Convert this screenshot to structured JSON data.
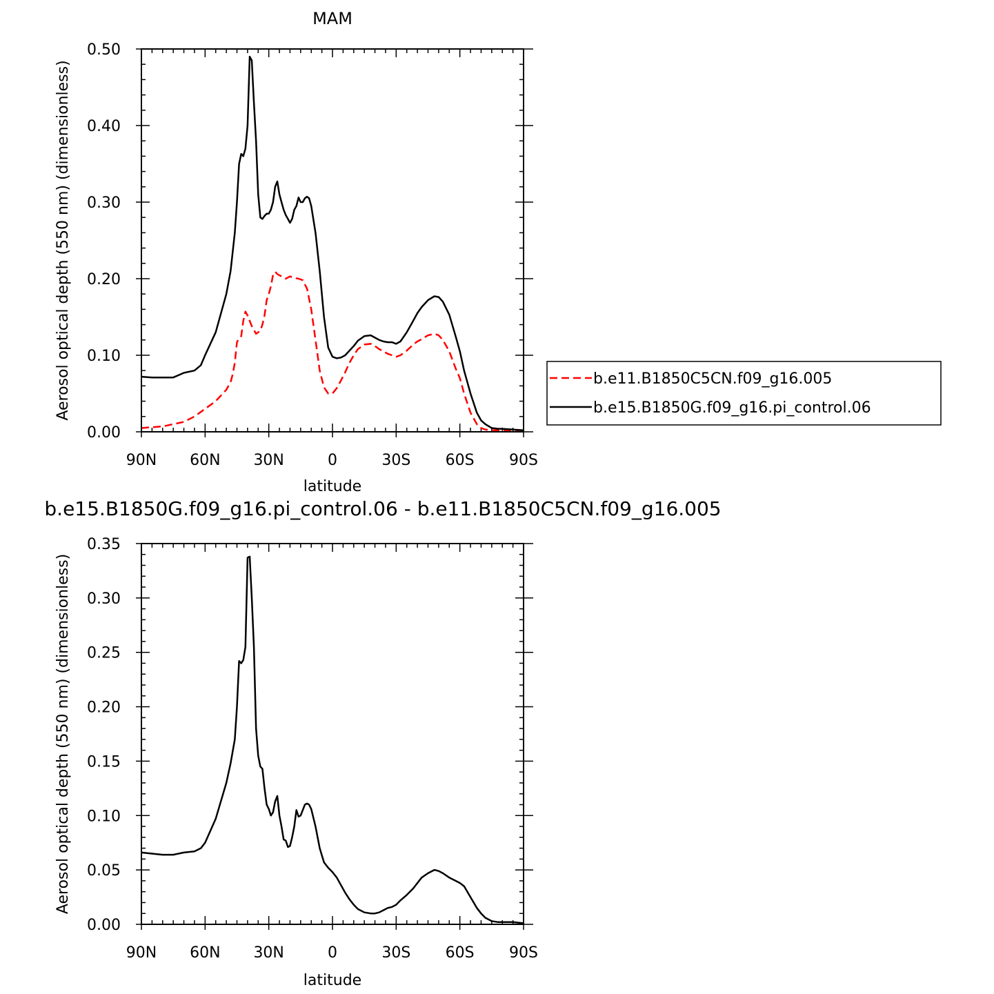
{
  "chart_data": [
    {
      "type": "line",
      "title": "MAM",
      "xlabel": "latitude",
      "ylabel": "Aerosol optical depth (550 nm) (dimensionless)",
      "xlim": [
        90,
        -90
      ],
      "ylim": [
        0,
        0.5
      ],
      "x_ticks": [
        90,
        60,
        30,
        0,
        -30,
        -60,
        -90
      ],
      "x_tick_labels": [
        "90N",
        "60N",
        "30N",
        "0",
        "30S",
        "60S",
        "90S"
      ],
      "y_ticks": [
        0,
        0.1,
        0.2,
        0.3,
        0.4,
        0.5
      ],
      "y_tick_labels": [
        "0.00",
        "0.10",
        "0.20",
        "0.30",
        "0.40",
        "0.50"
      ],
      "legend_position": "right",
      "series": [
        {
          "name": "b.e11.B1850C5CN.f09_g16.005",
          "color": "#ff0000",
          "dash": "dashed",
          "x": [
            90,
            80,
            75,
            70,
            65,
            60,
            55,
            50,
            48,
            47,
            46,
            45,
            44,
            43,
            42,
            41,
            40,
            38,
            36,
            34,
            33,
            32,
            31,
            30,
            29,
            28,
            27,
            26,
            24,
            22,
            20,
            18,
            16,
            14,
            12,
            10,
            8,
            6,
            4,
            2,
            0,
            -2,
            -4,
            -6,
            -8,
            -10,
            -12,
            -15,
            -18,
            -20,
            -22,
            -24,
            -26,
            -28,
            -30,
            -32,
            -35,
            -38,
            -40,
            -42,
            -45,
            -48,
            -50,
            -52,
            -55,
            -58,
            -60,
            -62,
            -65,
            -68,
            -70,
            -72,
            -75,
            -78,
            -80,
            -85,
            -90
          ],
          "y": [
            0.005,
            0.007,
            0.01,
            0.013,
            0.02,
            0.03,
            0.04,
            0.055,
            0.065,
            0.075,
            0.09,
            0.117,
            0.122,
            0.125,
            0.145,
            0.157,
            0.152,
            0.138,
            0.128,
            0.132,
            0.14,
            0.152,
            0.172,
            0.18,
            0.19,
            0.205,
            0.209,
            0.206,
            0.203,
            0.2,
            0.203,
            0.201,
            0.2,
            0.198,
            0.187,
            0.16,
            0.12,
            0.08,
            0.058,
            0.05,
            0.05,
            0.057,
            0.067,
            0.078,
            0.09,
            0.1,
            0.108,
            0.114,
            0.115,
            0.112,
            0.108,
            0.105,
            0.102,
            0.1,
            0.098,
            0.1,
            0.106,
            0.114,
            0.118,
            0.121,
            0.126,
            0.128,
            0.126,
            0.12,
            0.105,
            0.083,
            0.07,
            0.05,
            0.025,
            0.01,
            0.005,
            0.003,
            0.002,
            0.002,
            0.002,
            0.001,
            0.001
          ]
        },
        {
          "name": "b.e15.B1850G.f09_g16.pi_control.06",
          "color": "#000000",
          "dash": "solid",
          "x": [
            90,
            85,
            80,
            75,
            70,
            65,
            62,
            60,
            55,
            50,
            48,
            46,
            45,
            44,
            43,
            42,
            41,
            40,
            39,
            38,
            37,
            36,
            35,
            34,
            33,
            32,
            31,
            30,
            29,
            28,
            27,
            26,
            25,
            24,
            23,
            22,
            21,
            20,
            19,
            18,
            17,
            16,
            15,
            14,
            13,
            12,
            11,
            10,
            8,
            6,
            4,
            2,
            0,
            -2,
            -4,
            -6,
            -8,
            -10,
            -12,
            -15,
            -18,
            -20,
            -22,
            -24,
            -26,
            -28,
            -30,
            -32,
            -35,
            -38,
            -40,
            -42,
            -45,
            -48,
            -50,
            -52,
            -55,
            -58,
            -60,
            -62,
            -65,
            -68,
            -70,
            -72,
            -75,
            -78,
            -80,
            -85,
            -90
          ],
          "y": [
            0.072,
            0.071,
            0.071,
            0.071,
            0.077,
            0.08,
            0.087,
            0.1,
            0.13,
            0.18,
            0.21,
            0.26,
            0.3,
            0.35,
            0.363,
            0.36,
            0.37,
            0.4,
            0.49,
            0.485,
            0.43,
            0.38,
            0.31,
            0.28,
            0.278,
            0.282,
            0.285,
            0.285,
            0.29,
            0.3,
            0.32,
            0.327,
            0.31,
            0.3,
            0.29,
            0.283,
            0.278,
            0.273,
            0.278,
            0.29,
            0.295,
            0.306,
            0.3,
            0.3,
            0.305,
            0.307,
            0.305,
            0.295,
            0.26,
            0.21,
            0.15,
            0.11,
            0.098,
            0.096,
            0.097,
            0.1,
            0.106,
            0.112,
            0.119,
            0.125,
            0.126,
            0.123,
            0.12,
            0.118,
            0.117,
            0.117,
            0.115,
            0.118,
            0.13,
            0.145,
            0.155,
            0.163,
            0.172,
            0.177,
            0.176,
            0.17,
            0.153,
            0.125,
            0.105,
            0.08,
            0.05,
            0.025,
            0.015,
            0.01,
            0.005,
            0.004,
            0.004,
            0.003,
            0.002
          ]
        }
      ]
    },
    {
      "type": "line",
      "title": "b.e15.B1850G.f09_g16.pi_control.06 - b.e11.B1850C5CN.f09_g16.005",
      "xlabel": "latitude",
      "ylabel": "Aerosol optical depth (550 nm) (dimensionless)",
      "xlim": [
        90,
        -90
      ],
      "ylim": [
        0,
        0.35
      ],
      "x_ticks": [
        90,
        60,
        30,
        0,
        -30,
        -60,
        -90
      ],
      "x_tick_labels": [
        "90N",
        "60N",
        "30N",
        "0",
        "30S",
        "60S",
        "90S"
      ],
      "y_ticks": [
        0,
        0.05,
        0.1,
        0.15,
        0.2,
        0.25,
        0.3,
        0.35
      ],
      "y_tick_labels": [
        "0.00",
        "0.05",
        "0.10",
        "0.15",
        "0.20",
        "0.25",
        "0.30",
        "0.35"
      ],
      "series": [
        {
          "color": "#000000",
          "dash": "solid",
          "x": [
            90,
            85,
            80,
            75,
            70,
            65,
            62,
            60,
            55,
            50,
            48,
            46,
            45,
            44,
            43,
            42,
            41,
            40,
            39,
            38,
            37,
            36,
            35,
            34,
            33,
            32,
            31,
            30,
            29,
            28,
            27,
            26,
            25,
            24,
            23,
            22,
            21,
            20,
            19,
            18,
            17,
            16,
            15,
            14,
            13,
            12,
            11,
            10,
            8,
            6,
            4,
            2,
            0,
            -2,
            -4,
            -6,
            -8,
            -10,
            -12,
            -15,
            -18,
            -20,
            -22,
            -24,
            -26,
            -28,
            -30,
            -32,
            -35,
            -38,
            -40,
            -42,
            -45,
            -48,
            -50,
            -52,
            -55,
            -58,
            -60,
            -62,
            -65,
            -68,
            -70,
            -72,
            -75,
            -78,
            -80,
            -85,
            -90
          ],
          "y": [
            0.066,
            0.065,
            0.064,
            0.064,
            0.066,
            0.067,
            0.07,
            0.075,
            0.097,
            0.13,
            0.148,
            0.17,
            0.2,
            0.242,
            0.24,
            0.243,
            0.255,
            0.337,
            0.338,
            0.3,
            0.255,
            0.18,
            0.155,
            0.145,
            0.143,
            0.125,
            0.11,
            0.106,
            0.1,
            0.103,
            0.113,
            0.118,
            0.1,
            0.09,
            0.078,
            0.077,
            0.071,
            0.072,
            0.08,
            0.09,
            0.105,
            0.099,
            0.1,
            0.105,
            0.11,
            0.111,
            0.11,
            0.106,
            0.09,
            0.07,
            0.057,
            0.052,
            0.048,
            0.043,
            0.036,
            0.029,
            0.023,
            0.018,
            0.014,
            0.011,
            0.01,
            0.01,
            0.011,
            0.013,
            0.015,
            0.016,
            0.018,
            0.022,
            0.027,
            0.033,
            0.038,
            0.043,
            0.047,
            0.05,
            0.049,
            0.047,
            0.043,
            0.04,
            0.038,
            0.035,
            0.025,
            0.015,
            0.01,
            0.006,
            0.003,
            0.002,
            0.002,
            0.002,
            0.001
          ]
        }
      ]
    }
  ]
}
